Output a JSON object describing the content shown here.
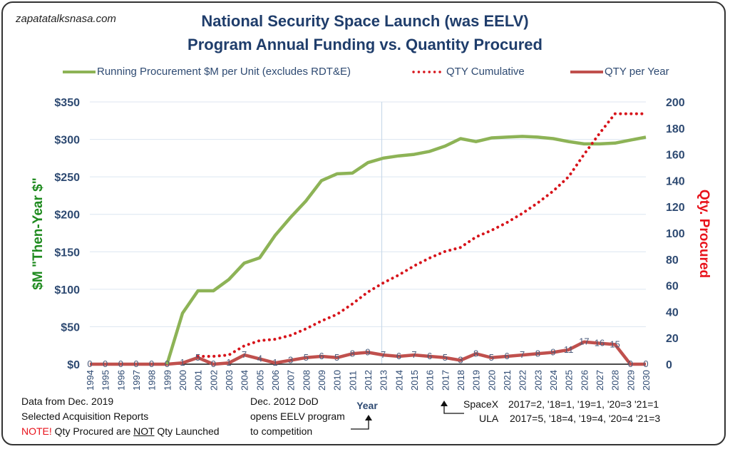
{
  "site": "zapatatalksnasa.com",
  "title_line1": "National Security Space Launch (was EELV)",
  "title_line2": "Program Annual Funding vs. Quantity Procured",
  "colors": {
    "title": "#1f3d6b",
    "axis_text": "#2e4a72",
    "green": "#8db356",
    "red_dot": "#d7141b",
    "red_line": "#c0504d",
    "left_axis_label": "#1e8a1e",
    "right_axis_label": "#e8121b",
    "grid": "#dce6f0"
  },
  "notes": {
    "data_from": "Data from Dec. 2019",
    "source": "Selected Acquisition Reports",
    "note_prefix": "NOTE!",
    "note_mid1": " Qty Procured are ",
    "note_not": "NOT",
    "note_mid2": " Qty Launched",
    "dod_line1": "Dec. 2012 DoD",
    "dod_line2": "opens EELV program",
    "dod_line3": "to competition",
    "spacex_label": "SpaceX",
    "spacex_values": "2017=2, '18=1, '19=1, '20=3 '21=1",
    "ula_label": "ULA",
    "ula_values": "2017=5, '18=4, '19=4, '20=4 '21=3"
  },
  "chart_data": {
    "type": "line",
    "title": "National Security Space Launch (was EELV) Program Annual Funding vs. Quantity Procured",
    "xlabel": "Year",
    "ylabel": "$M \"Then-Year $\"",
    "y2label": "Qty. Procured",
    "ylim": [
      0,
      350
    ],
    "y2lim": [
      0,
      200
    ],
    "yticks": [
      "$0",
      "$50",
      "$100",
      "$150",
      "$200",
      "$250",
      "$300",
      "$350"
    ],
    "y2ticks": [
      "0",
      "20",
      "40",
      "60",
      "80",
      "100",
      "120",
      "140",
      "160",
      "180",
      "200"
    ],
    "grid": true,
    "legend_position": "top",
    "marker_year": 2012.9,
    "x": [
      "1994",
      "1995",
      "1996",
      "1997",
      "1998",
      "1999",
      "2000",
      "2001",
      "2002",
      "2003",
      "2004",
      "2005",
      "2006",
      "2007",
      "2008",
      "2009",
      "2010",
      "2011",
      "2012",
      "2013",
      "2014",
      "2015",
      "2016",
      "2017",
      "2018",
      "2019",
      "2020",
      "2021",
      "2022",
      "2023",
      "2024",
      "2025",
      "2026",
      "2027",
      "2028",
      "2029",
      "2030"
    ],
    "series": [
      {
        "name": "Running Procurement $M per Unit (excludes RDT&E)",
        "axis": "left",
        "style": "solid-green",
        "values": [
          null,
          null,
          null,
          null,
          null,
          0,
          68,
          98,
          98,
          113,
          135,
          142,
          172,
          196,
          218,
          245,
          254,
          255,
          269,
          275,
          278,
          280,
          284,
          291,
          301,
          297,
          302,
          303,
          304,
          303,
          301,
          297,
          294,
          294,
          295,
          299,
          303
        ]
      },
      {
        "name": "QTY Cumulative",
        "axis": "right",
        "style": "dotted-red",
        "values": [
          null,
          null,
          null,
          null,
          null,
          null,
          null,
          6,
          6,
          7,
          14,
          18,
          19,
          22,
          27,
          33,
          38,
          46,
          55,
          62,
          68,
          75,
          81,
          86,
          89,
          97,
          102,
          108,
          115,
          123,
          132,
          143,
          160,
          176,
          191,
          191,
          191
        ]
      },
      {
        "name": "QTY per Year",
        "axis": "right",
        "style": "solid-red",
        "values": [
          0,
          0,
          0,
          0,
          0,
          0,
          1,
          5,
          0,
          1,
          7,
          4,
          1,
          3,
          5,
          6,
          5,
          8,
          9,
          7,
          6,
          7,
          6,
          5,
          3,
          8,
          5,
          6,
          7,
          8,
          9,
          11,
          17,
          16,
          15,
          0,
          0
        ]
      }
    ]
  }
}
